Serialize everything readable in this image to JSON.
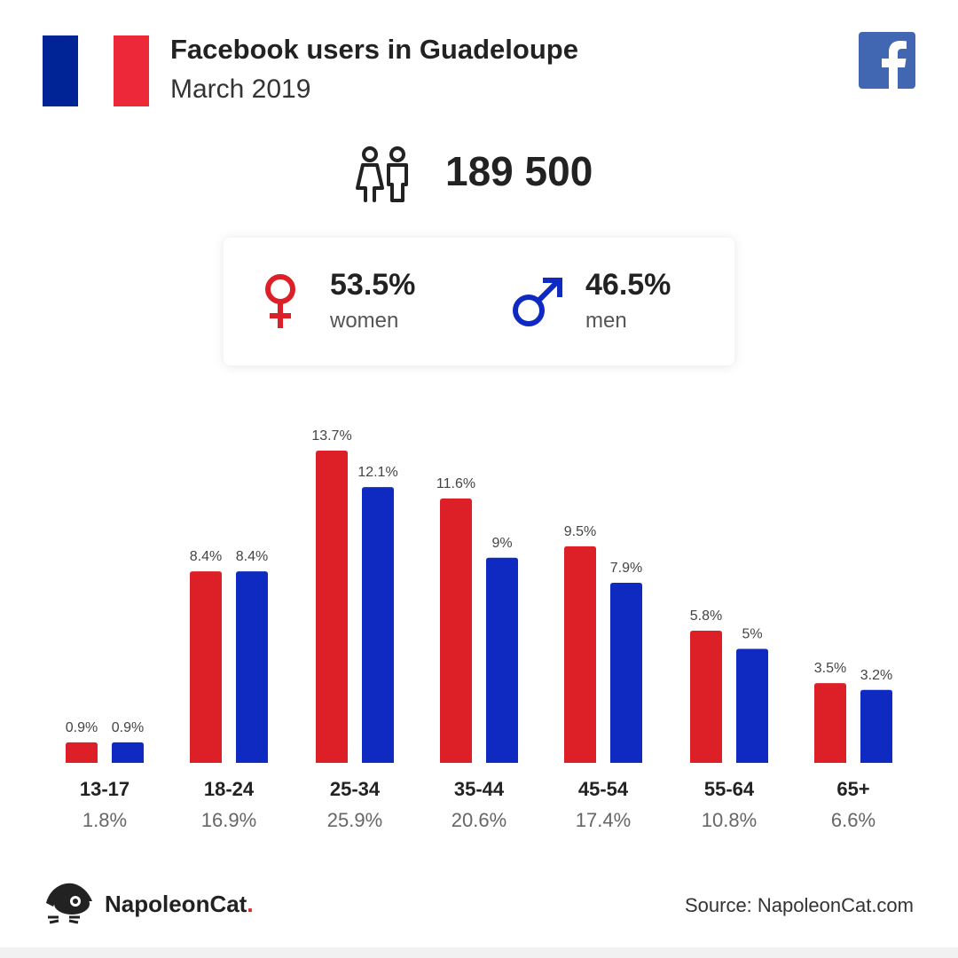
{
  "header": {
    "title": "Facebook users in Guadeloupe",
    "subtitle": "March 2019",
    "flag_colors": [
      "#002395",
      "#ffffff",
      "#ED2939"
    ],
    "fb_icon": "facebook-icon",
    "fb_color": "#4267B2"
  },
  "total": {
    "icon": "users-icon",
    "value": "189 500"
  },
  "gender": {
    "women": {
      "icon": "female-icon",
      "percent": "53.5%",
      "label": "women",
      "color": "#DD2027"
    },
    "men": {
      "icon": "male-icon",
      "percent": "46.5%",
      "label": "men",
      "color": "#0F2AC1"
    }
  },
  "chart_data": {
    "type": "bar",
    "categories": [
      "13-17",
      "18-24",
      "25-34",
      "35-44",
      "45-54",
      "55-64",
      "65+"
    ],
    "category_totals": [
      "1.8%",
      "16.9%",
      "25.9%",
      "20.6%",
      "17.4%",
      "10.8%",
      "6.6%"
    ],
    "series": [
      {
        "color": "#DD2027",
        "values": [
          0.9,
          8.4,
          13.7,
          11.6,
          9.5,
          5.8,
          3.5
        ],
        "labels": [
          "0.9%",
          "8.4%",
          "13.7%",
          "11.6%",
          "9.5%",
          "5.8%",
          "3.5%"
        ]
      },
      {
        "color": "#0F2AC1",
        "values": [
          0.9,
          8.4,
          12.1,
          9,
          7.9,
          5,
          3.2
        ],
        "labels": [
          "0.9%",
          "8.4%",
          "12.1%",
          "9%",
          "7.9%",
          "5%",
          "3.2%"
        ]
      }
    ],
    "ylim": [
      0,
      13.7
    ],
    "grid": false,
    "legend": "none"
  },
  "footer": {
    "brand_icon": "napoleoncat-logo-icon",
    "brand_name": "NapoleonCat",
    "brand_dot": ".",
    "source": "Source: NapoleonCat.com"
  }
}
